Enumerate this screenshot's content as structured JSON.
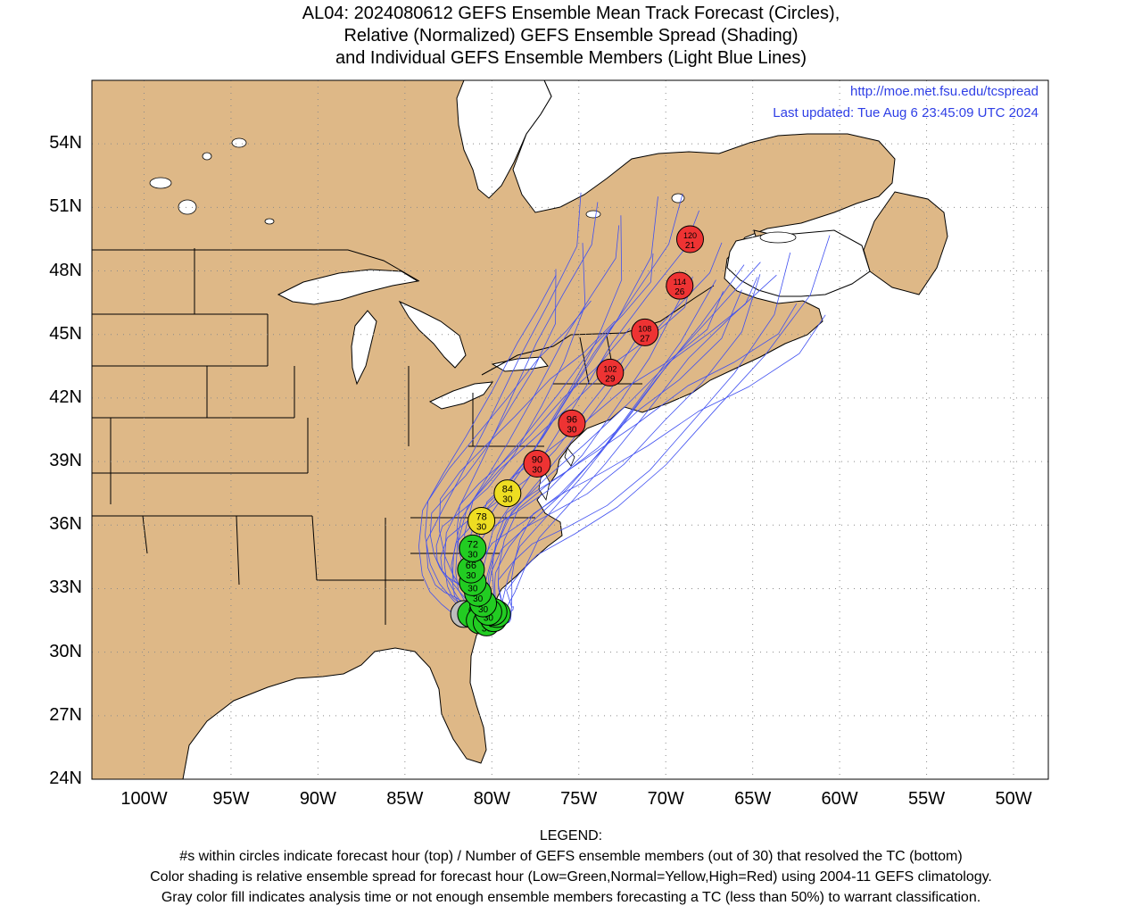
{
  "title": {
    "line1": "AL04: 2024080612 GEFS Ensemble Mean Track Forecast (Circles),",
    "line2": "Relative (Normalized) GEFS Ensemble Spread (Shading)",
    "line3": "and Individual GEFS Ensemble Members (Light Blue Lines)"
  },
  "credit": {
    "url": "http://moe.met.fsu.edu/tcspread",
    "updated": "Last updated: Tue Aug 6 23:45:09 UTC 2024"
  },
  "axes": {
    "lat_labels": [
      "54N",
      "51N",
      "48N",
      "45N",
      "42N",
      "39N",
      "36N",
      "33N",
      "30N",
      "27N",
      "24N"
    ],
    "lon_labels": [
      "100W",
      "95W",
      "90W",
      "85W",
      "80W",
      "75W",
      "70W",
      "65W",
      "60W",
      "55W",
      "50W"
    ],
    "lat_range": [
      24,
      57
    ],
    "lon_range": [
      -103,
      -48
    ]
  },
  "colors": {
    "land": "#deb887",
    "water": "#ffffff",
    "member_tracks": "#4050f0",
    "low_spread": "#22cc22",
    "normal_spread": "#eedd22",
    "high_spread": "#ee3333",
    "analysis": "#bdbdbd"
  },
  "track": [
    {
      "hour": "0",
      "members": "30",
      "lat": 31.8,
      "lon": -81.6,
      "class": "analysis"
    },
    {
      "hour": "6",
      "members": "30",
      "lat": 31.8,
      "lon": -81.2,
      "class": "low_spread"
    },
    {
      "hour": "12",
      "members": "30",
      "lat": 31.5,
      "lon": -80.7,
      "class": "low_spread"
    },
    {
      "hour": "18",
      "members": "30",
      "lat": 31.4,
      "lon": -80.3,
      "class": "low_spread"
    },
    {
      "hour": "24",
      "members": "30",
      "lat": 31.6,
      "lon": -79.9,
      "class": "low_spread"
    },
    {
      "hour": "30",
      "members": "30",
      "lat": 31.8,
      "lon": -79.7,
      "class": "low_spread"
    },
    {
      "hour": "36",
      "members": "30",
      "lat": 31.9,
      "lon": -79.9,
      "class": "low_spread"
    },
    {
      "hour": "42",
      "members": "30",
      "lat": 31.9,
      "lon": -80.2,
      "class": "low_spread"
    },
    {
      "hour": "48",
      "members": "30",
      "lat": 32.3,
      "lon": -80.5,
      "class": "low_spread"
    },
    {
      "hour": "54",
      "members": "30",
      "lat": 32.8,
      "lon": -80.8,
      "class": "low_spread"
    },
    {
      "hour": "60",
      "members": "30",
      "lat": 33.3,
      "lon": -81.1,
      "class": "low_spread"
    },
    {
      "hour": "66",
      "members": "30",
      "lat": 33.9,
      "lon": -81.2,
      "class": "low_spread"
    },
    {
      "hour": "72",
      "members": "30",
      "lat": 34.9,
      "lon": -81.1,
      "class": "low_spread"
    },
    {
      "hour": "78",
      "members": "30",
      "lat": 36.2,
      "lon": -80.6,
      "class": "normal_spread"
    },
    {
      "hour": "84",
      "members": "30",
      "lat": 37.5,
      "lon": -79.1,
      "class": "normal_spread"
    },
    {
      "hour": "90",
      "members": "30",
      "lat": 38.9,
      "lon": -77.4,
      "class": "high_spread"
    },
    {
      "hour": "96",
      "members": "30",
      "lat": 40.8,
      "lon": -75.4,
      "class": "high_spread"
    },
    {
      "hour": "102",
      "members": "29",
      "lat": 43.2,
      "lon": -73.2,
      "class": "high_spread"
    },
    {
      "hour": "108",
      "members": "27",
      "lat": 45.1,
      "lon": -71.2,
      "class": "high_spread"
    },
    {
      "hour": "114",
      "members": "26",
      "lat": 47.3,
      "lon": -69.2,
      "class": "high_spread"
    },
    {
      "hour": "120",
      "members": "21",
      "lat": 49.5,
      "lon": -68.6,
      "class": "high_spread"
    }
  ],
  "legend": {
    "heading": "LEGEND:",
    "line1": "#s within circles indicate forecast hour (top) / Number of GEFS ensemble members (out of 30) that resolved the TC (bottom)",
    "line2": "Color shading is relative ensemble spread for forecast hour (Low=Green,Normal=Yellow,High=Red) using 2004-11 GEFS climatology.",
    "line3": "Gray color fill indicates analysis time or not enough ensemble members forecasting a TC (less than 50%) to warrant classification."
  }
}
